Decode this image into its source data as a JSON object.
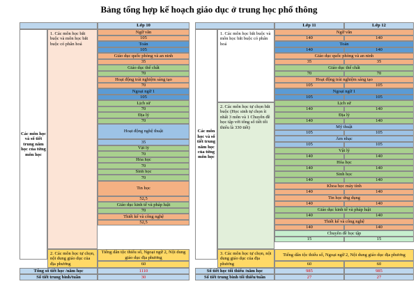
{
  "title": "Bảng tổng hợp kế hoạch giáo dục ở trung học phổ thông",
  "colors": {
    "header": "#bdd7ee",
    "orange": "#f4b183",
    "blue": "#5b9bd5",
    "yellow": "#ffd966",
    "green": "#a9d08e",
    "light_blue": "#9dc3e6",
    "light_green": "#c6efce",
    "pink": "#fce4d6",
    "light_green_group": "#e2efda"
  },
  "grade10": {
    "header": "Lớp 10",
    "row_label": "Các môn học và số tiết trung năm học của từng môn học",
    "group1": "1. Các môn học bắt buộc và môn học bắt buộc có phân hoá",
    "group2": "2. Các môn học tự chọn, nội dung giáo dục của địa phương",
    "subjects": [
      {
        "name": "Ngữ văn",
        "periods": "105"
      },
      {
        "name": "Toán",
        "periods": "105"
      },
      {
        "name": "Giáo dục quốc phòng và an ninh",
        "periods": "35"
      },
      {
        "name": "Giáo dục thể chất",
        "periods": "70"
      },
      {
        "name": "Hoạt động trải nghiệm sáng tạo",
        "periods": "70"
      },
      {
        "name": "Ngoại ngữ 1",
        "periods": "105"
      },
      {
        "name": "Lịch sử",
        "periods": "70"
      },
      {
        "name": "Địa lý",
        "periods": "70"
      },
      {
        "name": "Hoạt động nghệ thuật",
        "periods": "35"
      },
      {
        "name": "Vật lý",
        "periods": "70"
      },
      {
        "name": "Hóa học",
        "periods": "70"
      },
      {
        "name": "Sinh học",
        "periods": "70"
      },
      {
        "name": "Tin học",
        "periods": "52,5"
      },
      {
        "name": "Giáo dục kinh tế và pháp luật",
        "periods": "70"
      },
      {
        "name": "Thiết kế và công nghệ",
        "periods": "52,5"
      }
    ],
    "local": {
      "name": "Tiếng dân tộc thiểu số, Ngoại ngữ 2, Nội dung giáo dục địa phương",
      "periods": "60"
    },
    "total_label": "Tổng số tiết học /năm học",
    "total_value": "1110",
    "avg_label": "Số tiết trung bình/tuần",
    "avg_value": "30"
  },
  "grade1112": {
    "header11": "Lớp 11",
    "header12": "Lớp 12",
    "row_label": "Các môn học và số tiết trung năm học của từng môn học",
    "group1": "1. Các môn học bắt buộc và môn học bắt buộc có phân hoá",
    "group2": "2. Các môn học tự chọn bắt buộc (Học sinh tự chọn ít nhất 3 môn và 1 Chuyên đề học tập với tổng số tiết tối thiểu là 330 tiết)",
    "group3": "3. Các môn học tự chọn, nội dung giáo dục của địa phương",
    "subjects": [
      {
        "name": "Ngữ văn",
        "p11": "140",
        "p12": "140"
      },
      {
        "name": "Toán",
        "p11": "140",
        "p12": "140"
      },
      {
        "name": "Giáo dục quốc phòng và an ninh",
        "p11": "35",
        "p12": "35"
      },
      {
        "name": "Giáo dục thể chất",
        "p11": "70",
        "p12": "70"
      },
      {
        "name": "Hoạt động trải nghiệm sáng tạo",
        "p11": "105",
        "p12": "105"
      },
      {
        "name": "Ngoại ngữ 1",
        "p11": "105",
        "p12": "105"
      },
      {
        "name": "Lịch sử",
        "p11": "140",
        "p12": "140"
      },
      {
        "name": "Địa lý",
        "p11": "140",
        "p12": "140"
      },
      {
        "name": "Mỹ thuật",
        "p11": "105",
        "p12": "105"
      },
      {
        "name": "Âm nhạc",
        "p11": "105",
        "p12": "105"
      },
      {
        "name": "Vật lý",
        "p11": "140",
        "p12": "140"
      },
      {
        "name": "Hóa học",
        "p11": "140",
        "p12": "140"
      },
      {
        "name": "Sinh học",
        "p11": "140",
        "p12": "140"
      },
      {
        "name": "Khoa học máy tính",
        "p11": "140",
        "p12": "140"
      },
      {
        "name": "Tin học ứng dụng",
        "p11": "140",
        "p12": "140"
      },
      {
        "name": "Giáo dục kinh tế và pháp luật",
        "p11": "140",
        "p12": "140"
      },
      {
        "name": "Thiết kế và công nghệ",
        "p11": "140",
        "p12": "140"
      },
      {
        "name": "Chuyên đề học tập",
        "p11": "15",
        "p12": "15"
      }
    ],
    "local": {
      "name": "Tiếng dân tộc thiểu số, Ngoại ngữ 2, Nội dung giáo dục địa phương",
      "p11": "60",
      "p12": "60"
    },
    "total_label": "Số tiết học tối thiểu /năm học",
    "total_11": "985",
    "total_12": "985",
    "avg_label": "Số tiết trung bình tối thiểu/tuần",
    "avg_11": "27",
    "avg_12": "27"
  }
}
